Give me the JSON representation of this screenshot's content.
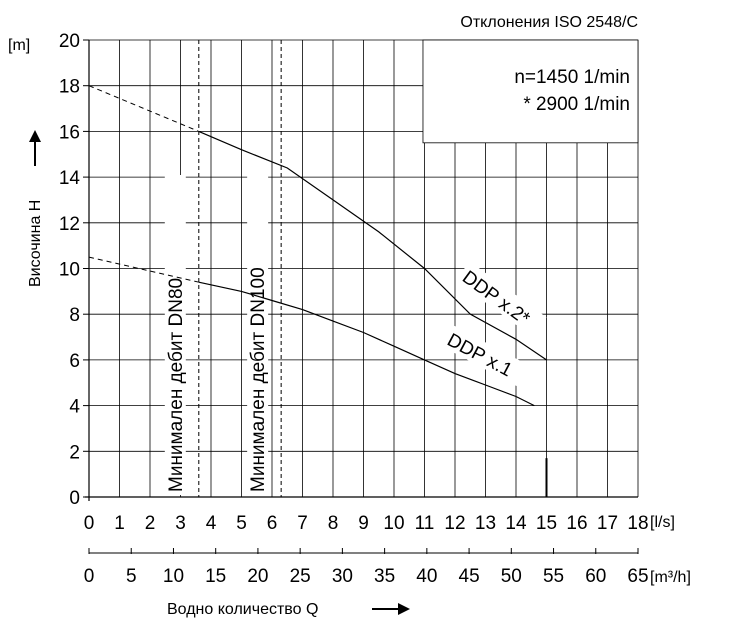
{
  "header": {
    "deviation_note": "Отклонения ISO 2548/C"
  },
  "speed_note": {
    "line1": "n=1450 1/min",
    "line2": "* 2900 1/min"
  },
  "axes": {
    "y_unit": "[m]",
    "y_label": "Височина H",
    "x_unit_primary": "[l/s]",
    "x_unit_secondary": "[m³/h]",
    "x_label": "Водно количество Q"
  },
  "min_flow_lines": [
    {
      "label": "Минимален дебит DN80",
      "q": 3.6
    },
    {
      "label": "Минимален дебит DN100",
      "q": 6.3
    }
  ],
  "chart_data": {
    "type": "line",
    "title": "",
    "x_primary": {
      "unit": "l/s",
      "range": [
        0,
        18
      ],
      "ticks": [
        0,
        1,
        2,
        3,
        4,
        5,
        6,
        7,
        8,
        9,
        10,
        11,
        12,
        13,
        14,
        15,
        16,
        17,
        18
      ]
    },
    "x_secondary": {
      "unit": "m³/h",
      "range": [
        0,
        65
      ],
      "ticks": [
        0,
        5,
        10,
        15,
        20,
        25,
        30,
        35,
        40,
        45,
        50,
        55,
        60,
        65
      ]
    },
    "y": {
      "unit": "m",
      "range": [
        0,
        20
      ],
      "ticks": [
        0,
        2,
        4,
        6,
        8,
        10,
        12,
        14,
        16,
        18,
        20
      ]
    },
    "grid": true,
    "series": [
      {
        "name": "DDP x.2*",
        "dashed_points": [
          [
            0,
            18.0
          ],
          [
            3.6,
            16.0
          ]
        ],
        "points": [
          [
            3.6,
            16.0
          ],
          [
            5,
            15.2
          ],
          [
            6.5,
            14.4
          ],
          [
            8,
            13.0
          ],
          [
            9.5,
            11.6
          ],
          [
            11,
            10.0
          ],
          [
            12.5,
            8.0
          ],
          [
            14,
            6.9
          ],
          [
            15,
            6.0
          ]
        ]
      },
      {
        "name": "DDP x.1",
        "dashed_points": [
          [
            0,
            10.5
          ],
          [
            3.6,
            9.4
          ]
        ],
        "points": [
          [
            3.6,
            9.4
          ],
          [
            5,
            9.0
          ],
          [
            6,
            8.6
          ],
          [
            7,
            8.2
          ],
          [
            8,
            7.7
          ],
          [
            9,
            7.2
          ],
          [
            10,
            6.6
          ],
          [
            11,
            6.0
          ],
          [
            12,
            5.4
          ],
          [
            13,
            4.9
          ],
          [
            14,
            4.4
          ],
          [
            14.6,
            4.0
          ]
        ]
      }
    ]
  }
}
